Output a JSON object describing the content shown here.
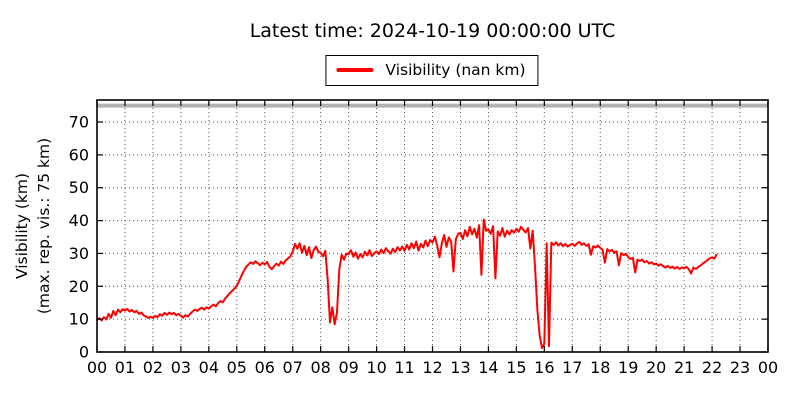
{
  "header": {
    "title": "Latest time: 2024-10-19 00:00:00 UTC"
  },
  "legend": {
    "label": "Visibility (nan km)",
    "swatch_color": "#ff0000"
  },
  "chart_data": {
    "type": "line",
    "title": "Latest time: 2024-10-19 00:00:00 UTC",
    "xlabel": "",
    "ylabel": [
      "Visibility (km)",
      "(max. rep. vis.: 75 km)"
    ],
    "x_tick_labels": [
      "00",
      "01",
      "02",
      "03",
      "04",
      "05",
      "06",
      "07",
      "08",
      "09",
      "10",
      "11",
      "12",
      "13",
      "14",
      "15",
      "16",
      "17",
      "18",
      "19",
      "20",
      "21",
      "22",
      "23",
      "00"
    ],
    "y_ticks": [
      0,
      10,
      20,
      30,
      40,
      50,
      60,
      70
    ],
    "xlim": [
      0,
      24
    ],
    "ylim": [
      0,
      76.7
    ],
    "grid": "dotted",
    "grid_color": "#555555",
    "axis_color": "#000000",
    "max_reported_visibility": {
      "value_km": 75,
      "color": "#b3b3b3",
      "line_width": 4
    },
    "series": [
      {
        "name": "Visibility (nan km)",
        "color": "#ff0000",
        "line_width": 2,
        "x_start_hour": 0,
        "x_step_hours": 0.0833333,
        "values_km": [
          9.8,
          10.3,
          9.6,
          10.6,
          9.9,
          11.6,
          10.4,
          12.5,
          11.2,
          12.9,
          12.1,
          13.0,
          12.6,
          13.1,
          12.3,
          12.8,
          12.1,
          12.5,
          11.6,
          12.0,
          11.2,
          10.8,
          10.4,
          10.7,
          10.4,
          11.0,
          10.6,
          11.5,
          11.0,
          11.9,
          11.3,
          12.0,
          11.5,
          11.9,
          11.2,
          11.6,
          11.0,
          10.5,
          11.2,
          10.8,
          11.6,
          12.3,
          12.9,
          12.5,
          13.1,
          13.5,
          12.9,
          13.6,
          13.2,
          13.9,
          14.4,
          13.9,
          14.9,
          15.5,
          15.1,
          16.3,
          17.1,
          17.9,
          18.6,
          19.3,
          20.2,
          21.6,
          23.2,
          24.6,
          25.9,
          26.6,
          27.3,
          26.8,
          27.6,
          27.0,
          26.4,
          27.2,
          26.6,
          27.4,
          25.9,
          25.2,
          26.1,
          26.9,
          26.3,
          27.5,
          26.8,
          27.9,
          28.5,
          29.1,
          30.6,
          32.9,
          31.4,
          33.1,
          30.2,
          32.3,
          29.5,
          31.9,
          28.6,
          31.0,
          32.1,
          30.5,
          30.2,
          29.1,
          30.8,
          22.0,
          9.0,
          13.6,
          8.4,
          12.1,
          25.1,
          29.6,
          28.1,
          29.9,
          29.8,
          31.0,
          29.0,
          30.3,
          28.4,
          29.8,
          28.8,
          30.5,
          29.4,
          31.0,
          29.2,
          30.1,
          30.6,
          29.8,
          31.2,
          30.1,
          31.6,
          30.7,
          29.9,
          31.4,
          30.4,
          31.9,
          30.9,
          32.1,
          30.8,
          32.6,
          31.2,
          33.1,
          31.6,
          33.6,
          30.9,
          32.9,
          31.8,
          33.9,
          32.2,
          34.1,
          33.3,
          35.1,
          32.4,
          28.8,
          33.1,
          35.6,
          32.0,
          34.9,
          33.6,
          24.5,
          34.3,
          35.9,
          36.3,
          34.4,
          37.1,
          35.2,
          38.1,
          35.8,
          37.5,
          34.8,
          38.6,
          23.5,
          40.3,
          36.9,
          37.3,
          36.0,
          38.3,
          22.4,
          36.7,
          35.4,
          37.7,
          35.1,
          36.9,
          35.8,
          37.1,
          36.3,
          37.5,
          36.6,
          38.1,
          37.2,
          36.4,
          37.7,
          31.5,
          36.9,
          26.0,
          13.0,
          5.0,
          1.2,
          2.5,
          33.1,
          1.8,
          33.3,
          32.6,
          33.4,
          32.4,
          33.1,
          32.2,
          32.9,
          32.1,
          32.6,
          32.9,
          32.3,
          33.0,
          33.5,
          32.6,
          33.1,
          32.3,
          32.8,
          29.6,
          32.2,
          31.8,
          32.4,
          31.7,
          31.1,
          27.2,
          31.3,
          30.6,
          31.1,
          30.2,
          30.7,
          26.4,
          30.1,
          29.5,
          29.9,
          28.9,
          28.3,
          28.7,
          24.2,
          28.1,
          27.7,
          28.1,
          27.3,
          27.7,
          26.9,
          27.3,
          26.7,
          26.9,
          26.3,
          26.7,
          26.1,
          25.7,
          26.2,
          25.6,
          26.0,
          25.4,
          25.9,
          25.3,
          25.7,
          25.5,
          25.9,
          25.2,
          23.9,
          25.7,
          25.3,
          25.8,
          26.3,
          26.9,
          27.4,
          28.0,
          28.5,
          28.8,
          28.4,
          29.8
        ]
      }
    ]
  }
}
